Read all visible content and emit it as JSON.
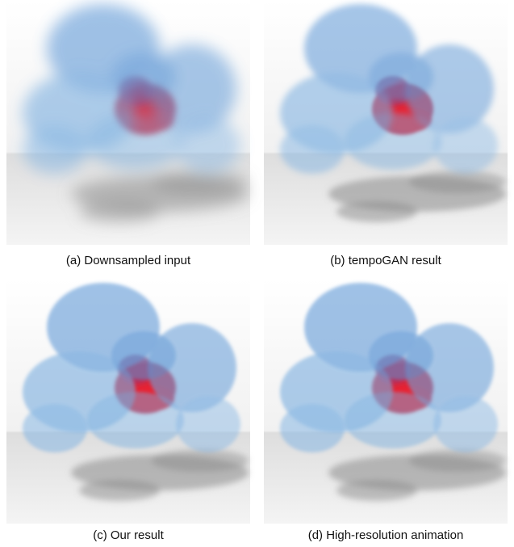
{
  "figure": {
    "panels": [
      {
        "caption": "(a) Downsampled input"
      },
      {
        "caption": "(b) tempoGAN result"
      },
      {
        "caption": "(c) Our result"
      },
      {
        "caption": "(d) High-resolution animation"
      }
    ]
  }
}
